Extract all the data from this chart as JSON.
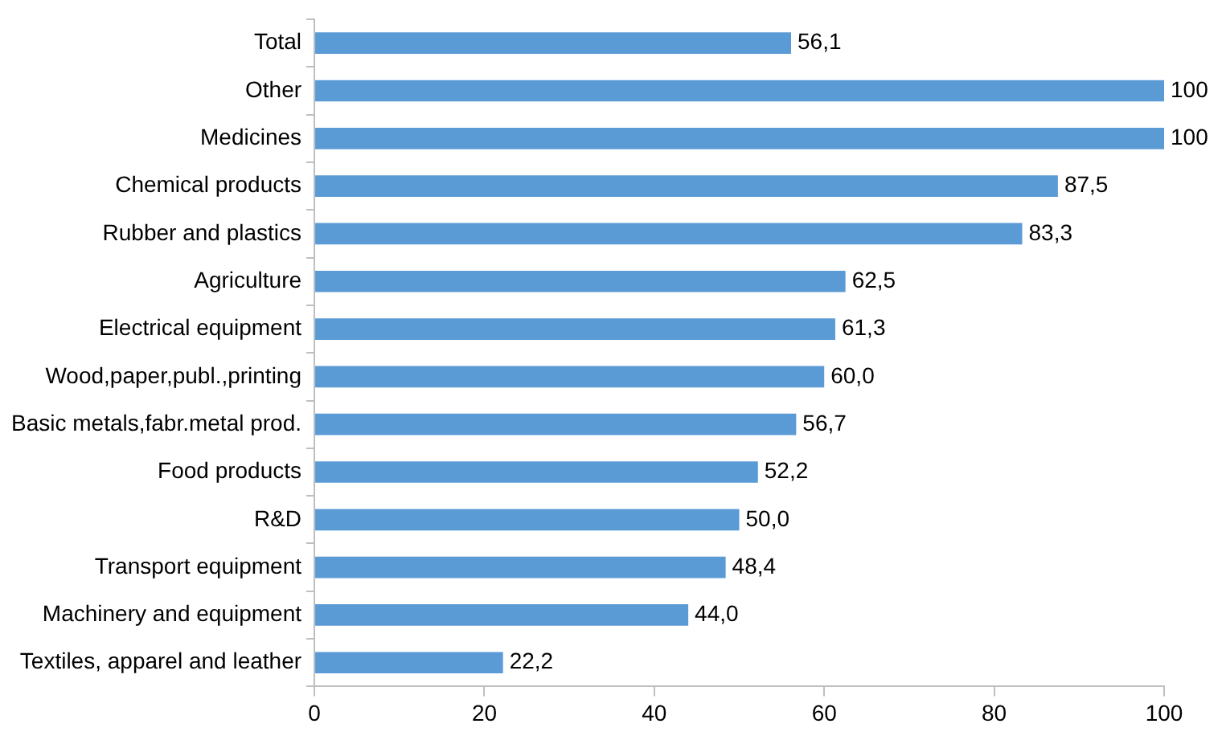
{
  "chart_data": {
    "type": "bar",
    "orientation": "horizontal",
    "categories": [
      "Total",
      "Other",
      "Medicines",
      "Chemical products",
      "Rubber and plastics",
      "Agriculture",
      "Electrical equipment",
      "Wood,paper,publ.,printing",
      "Basic metals,fabr.metal prod.",
      "Food products",
      "R&D",
      "Transport equipment",
      "Machinery and equipment",
      "Textiles, apparel and leather"
    ],
    "values": [
      56.1,
      100,
      100,
      87.5,
      83.3,
      62.5,
      61.3,
      60.0,
      56.7,
      52.2,
      50.0,
      48.4,
      44.0,
      22.2
    ],
    "value_labels": [
      "56,1",
      "100",
      "100",
      "87,5",
      "83,3",
      "62,5",
      "61,3",
      "60,0",
      "56,7",
      "52,2",
      "50,0",
      "48,4",
      "44,0",
      "22,2"
    ],
    "color": "#5b9bd5",
    "xlim": [
      0,
      100
    ],
    "xticks": [
      0,
      20,
      40,
      60,
      80,
      100
    ],
    "grid": false,
    "legend": false
  }
}
